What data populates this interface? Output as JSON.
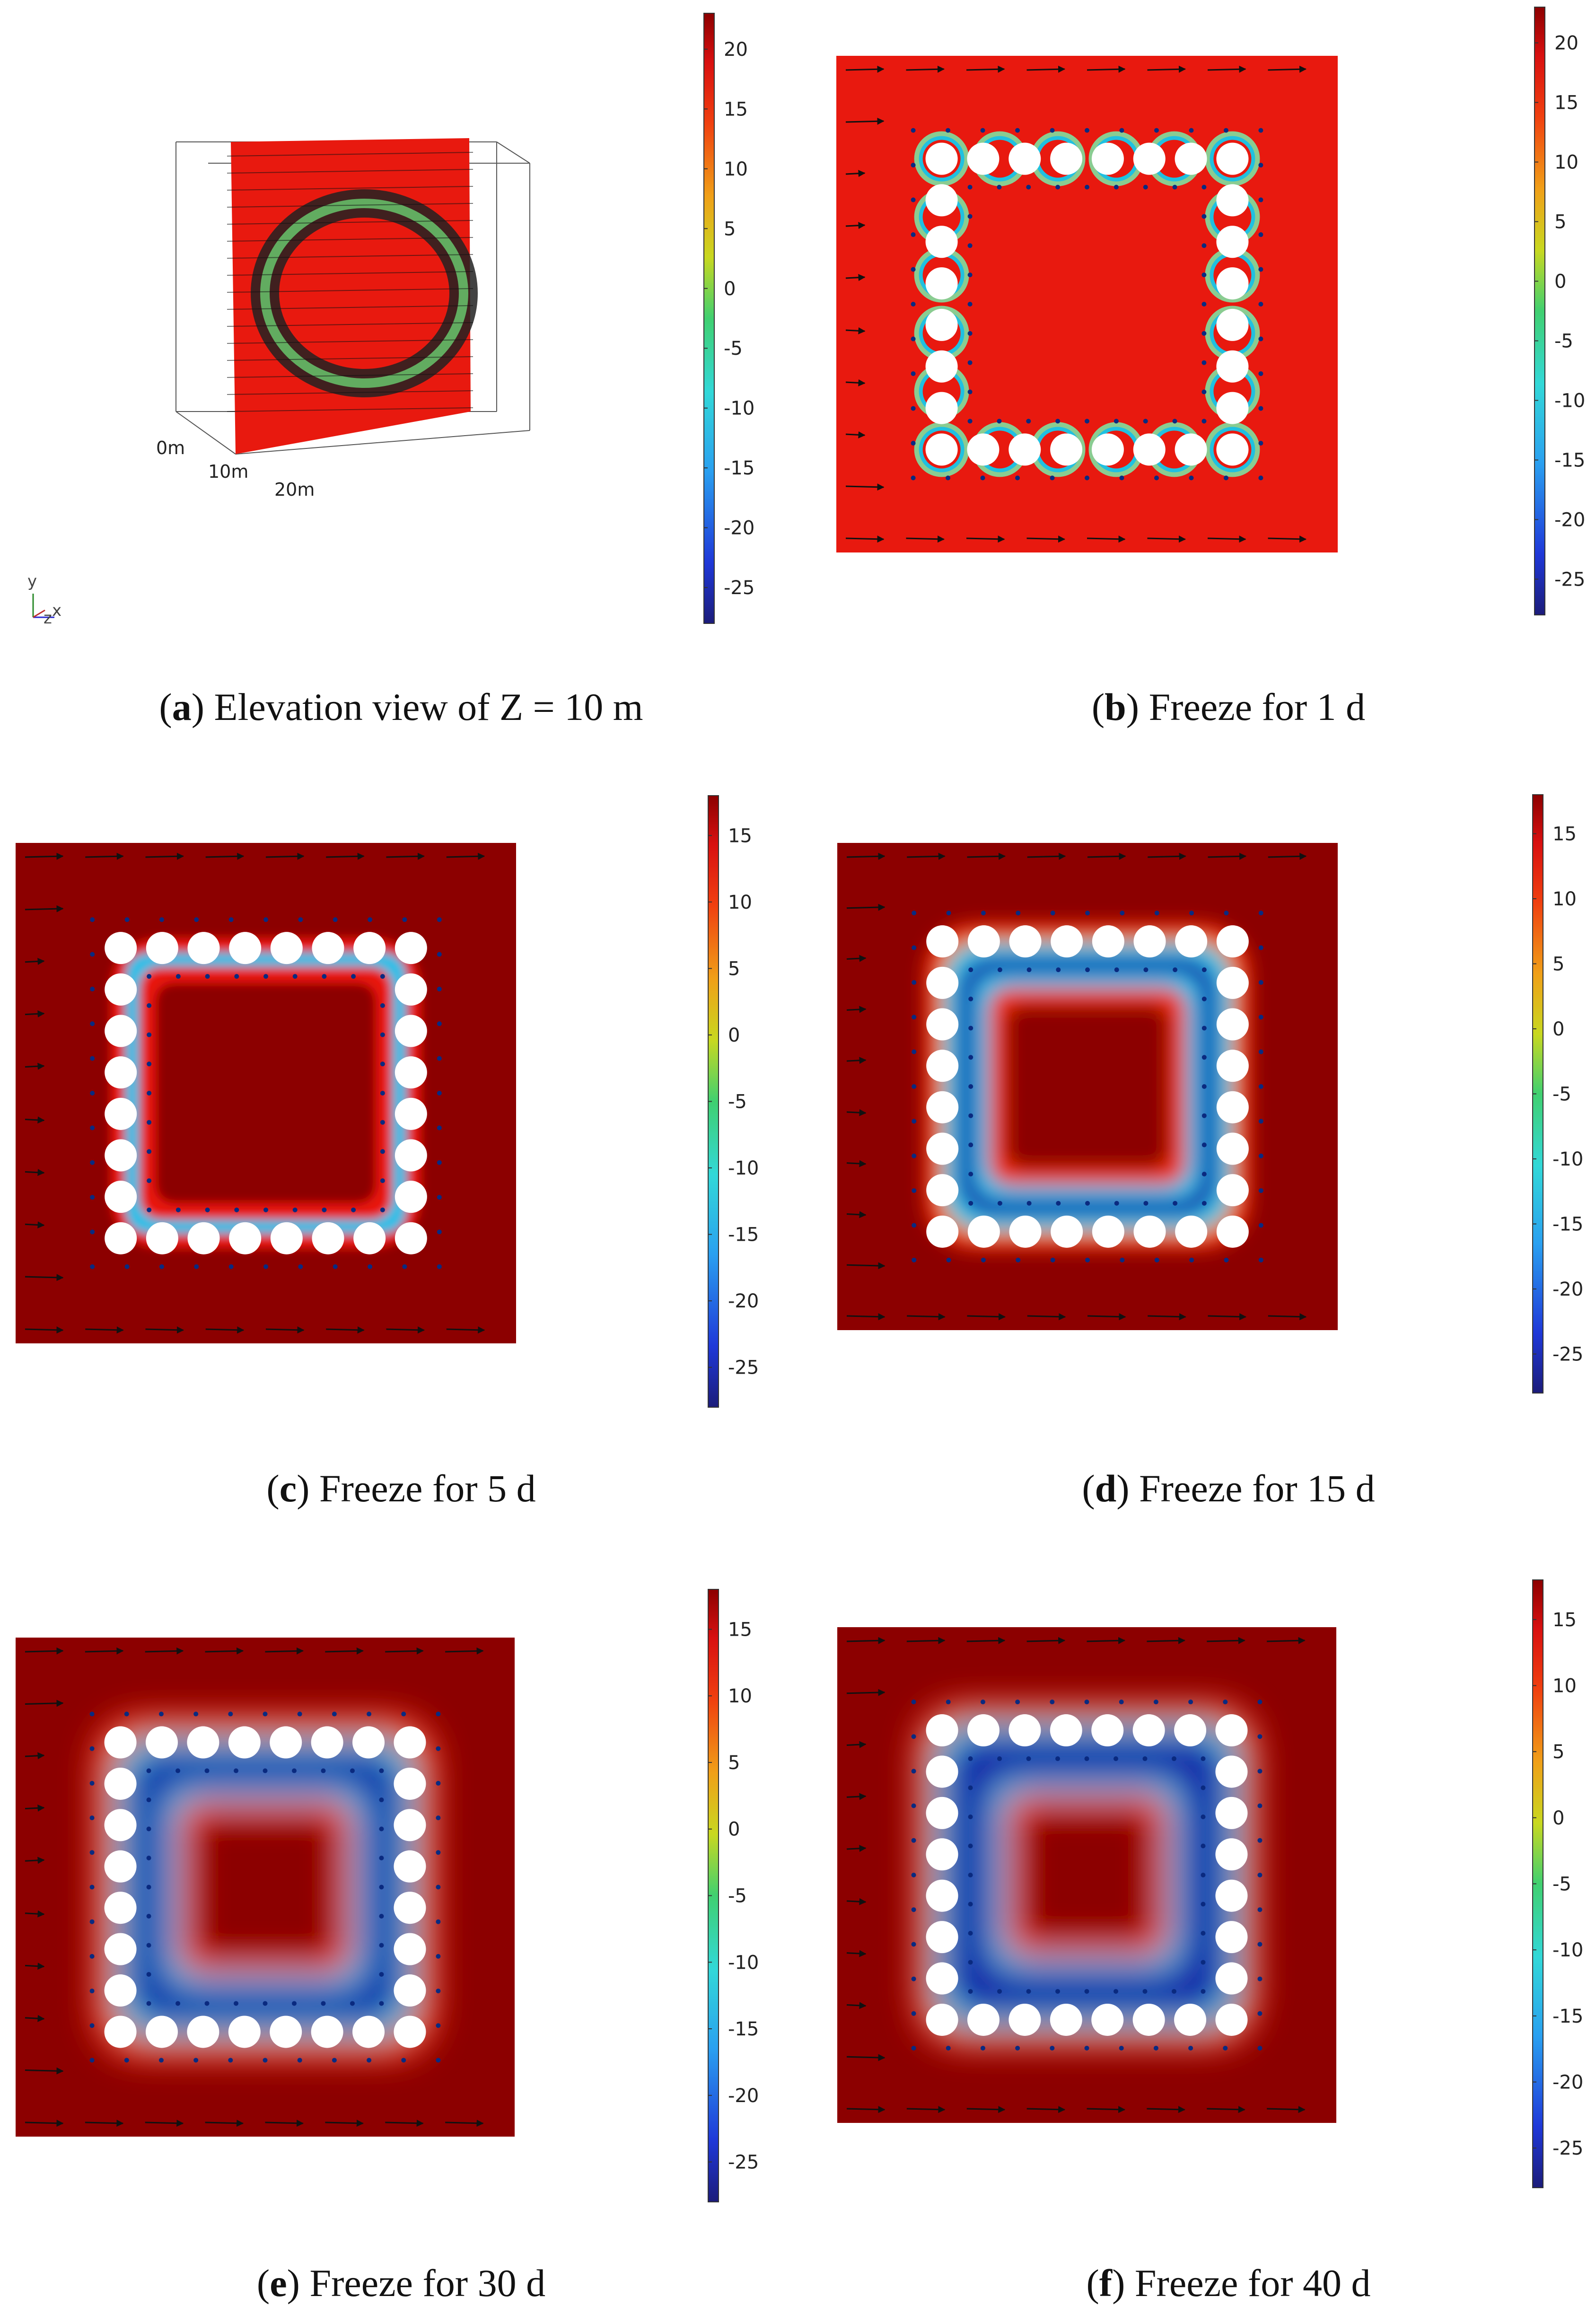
{
  "panels": [
    {
      "letter": "a",
      "caption": "Elevation view of Z = 10 m",
      "colorbar": {
        "range": [
          -28,
          23
        ],
        "ticks": [
          "20",
          "15",
          "10",
          "5",
          "0",
          "-5",
          "-10",
          "-15",
          "-20",
          "-25"
        ]
      },
      "axis_labels": [
        "0m",
        "10m",
        "20m"
      ],
      "triad_labels": [
        "y",
        "z",
        "x"
      ]
    },
    {
      "letter": "b",
      "caption": "Freeze for 1 d",
      "colorbar": {
        "range": [
          -28,
          23
        ],
        "ticks": [
          "20",
          "15",
          "10",
          "5",
          "0",
          "-5",
          "-10",
          "-15",
          "-20",
          "-25"
        ]
      }
    },
    {
      "letter": "c",
      "caption": "Freeze for 5 d",
      "colorbar": {
        "range": [
          -28,
          18
        ],
        "ticks": [
          "15",
          "10",
          "5",
          "0",
          "-5",
          "-10",
          "-15",
          "-20",
          "-25"
        ]
      }
    },
    {
      "letter": "d",
      "caption": "Freeze for 15 d",
      "colorbar": {
        "range": [
          -28,
          18
        ],
        "ticks": [
          "15",
          "10",
          "5",
          "0",
          "-5",
          "-10",
          "-15",
          "-20",
          "-25"
        ]
      }
    },
    {
      "letter": "e",
      "caption": "Freeze for 30 d",
      "colorbar": {
        "range": [
          -28,
          18
        ],
        "ticks": [
          "15",
          "10",
          "5",
          "0",
          "-5",
          "-10",
          "-15",
          "-20",
          "-25"
        ]
      }
    },
    {
      "letter": "f",
      "caption": "Freeze for 40 d",
      "colorbar": {
        "range": [
          -28,
          18
        ],
        "ticks": [
          "15",
          "10",
          "5",
          "0",
          "-5",
          "-10",
          "-15",
          "-20",
          "-25"
        ]
      }
    }
  ],
  "colors": {
    "warm": "#e8190f",
    "hot": "#8c0000",
    "cold": "#1a1aa8",
    "arrow": "#111111",
    "pipe": "#ffffff"
  }
}
